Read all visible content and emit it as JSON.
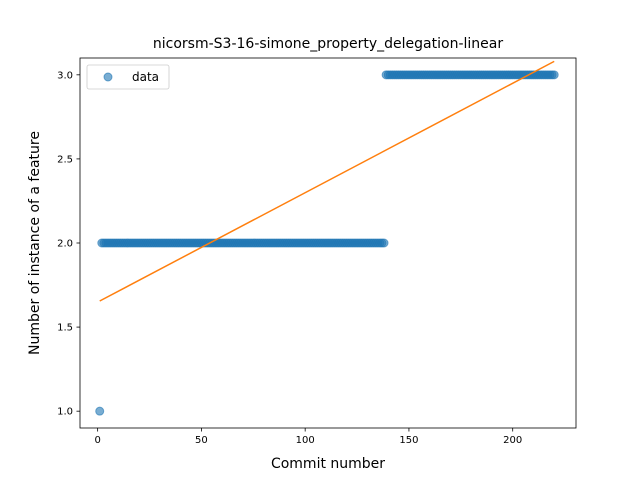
{
  "chart_data": {
    "type": "scatter",
    "title": "nicorsm-S3-16-simone_property_delegation-linear",
    "xlabel": "Commit number",
    "ylabel": "Number of instance of a feature",
    "xlim": [
      -8.5,
      230.5
    ],
    "ylim": [
      0.9,
      3.1
    ],
    "xticks": [
      0,
      50,
      100,
      150,
      200
    ],
    "yticks": [
      1.0,
      1.5,
      2.0,
      2.5,
      3.0
    ],
    "xtick_labels": [
      "0",
      "50",
      "100",
      "150",
      "200"
    ],
    "ytick_labels": [
      "1.0",
      "1.5",
      "2.0",
      "2.5",
      "3.0"
    ],
    "grid": false,
    "legend_position": "top-left",
    "series": [
      {
        "name": "data",
        "kind": "points",
        "color": "#1f77b4",
        "opacity": 0.6,
        "segments": [
          {
            "x_start": 1,
            "x_end": 1,
            "y": 1
          },
          {
            "x_start": 2,
            "x_end": 138,
            "y": 2
          },
          {
            "x_start": 139,
            "x_end": 220,
            "y": 3
          }
        ]
      },
      {
        "name": "",
        "kind": "line",
        "color": "#ff7f0e",
        "x": [
          1,
          220
        ],
        "y": [
          1.655,
          3.08
        ]
      }
    ]
  }
}
